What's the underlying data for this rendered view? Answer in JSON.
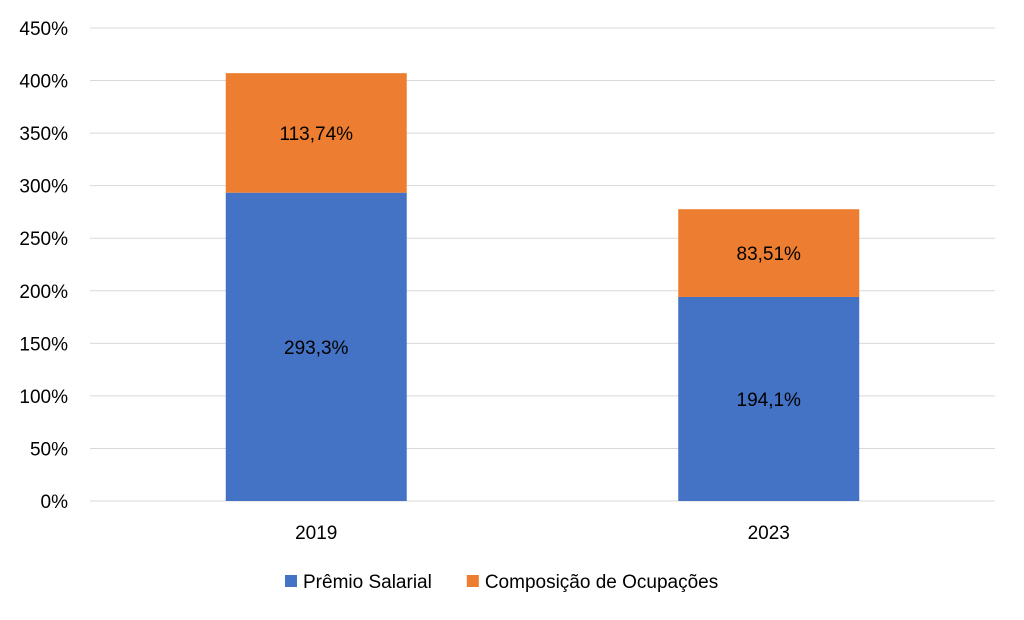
{
  "chart_data": {
    "type": "bar",
    "stacked": true,
    "title": "",
    "xlabel": "",
    "ylabel": "",
    "categories": [
      "2019",
      "2023"
    ],
    "series": [
      {
        "name": "Prêmio Salarial",
        "values": [
          293.3,
          194.1
        ],
        "labels": [
          "293,3%",
          "194,1%"
        ],
        "color": "#4472C4"
      },
      {
        "name": "Composição de Ocupações",
        "values": [
          113.74,
          83.51
        ],
        "labels": [
          "113,74%",
          "83,51%"
        ],
        "color": "#ED7D31"
      }
    ],
    "ylim": [
      0,
      450
    ],
    "yticks": [
      0,
      50,
      100,
      150,
      200,
      250,
      300,
      350,
      400,
      450
    ],
    "ytick_labels": [
      "0%",
      "50%",
      "100%",
      "150%",
      "200%",
      "250%",
      "300%",
      "350%",
      "400%",
      "450%"
    ],
    "grid": true,
    "legend_position": "bottom"
  }
}
